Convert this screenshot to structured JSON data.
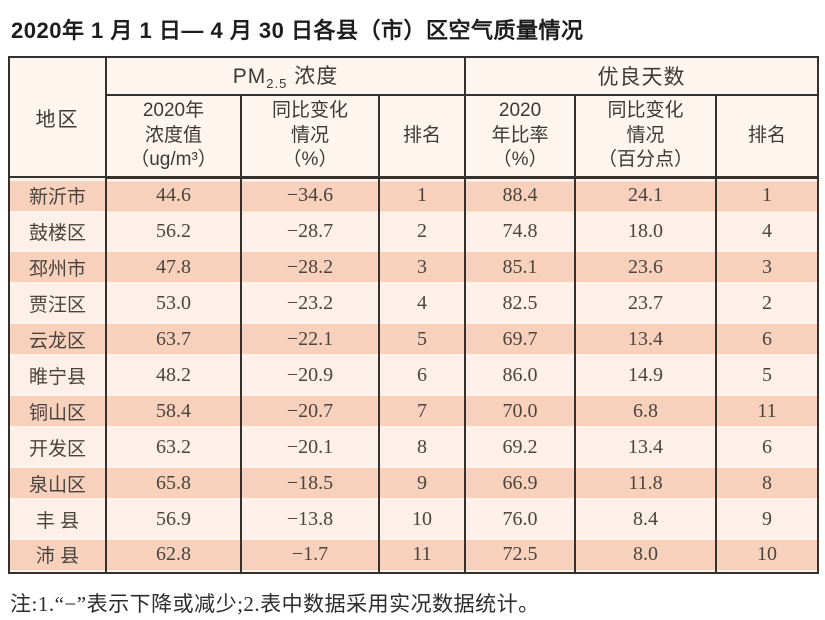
{
  "title": "2020年 1 月 1 日— 4 月 30 日各县（市）区空气质量情况",
  "note": "注:1.“−”表示下降或减少;2.表中数据采用实况数据统计。",
  "table": {
    "region_header": "地区",
    "pm_group": {
      "prefix": "PM",
      "sub": "2.5",
      "suffix": " 浓度"
    },
    "days_group_label": "优良天数",
    "sub_headers": [
      "2020年\n浓度值\n（ug/m³）",
      "同比变化\n情况\n（%）",
      "排名",
      "2020\n年比率\n（%）",
      "同比变化\n情况\n（百分点）",
      "排名"
    ],
    "rows": [
      {
        "region": "新沂市",
        "pm_value": "44.6",
        "pm_change": "−34.6",
        "pm_rank": "1",
        "days_ratio": "88.4",
        "days_change": "24.1",
        "days_rank": "1"
      },
      {
        "region": "鼓楼区",
        "pm_value": "56.2",
        "pm_change": "−28.7",
        "pm_rank": "2",
        "days_ratio": "74.8",
        "days_change": "18.0",
        "days_rank": "4"
      },
      {
        "region": "邳州市",
        "pm_value": "47.8",
        "pm_change": "−28.2",
        "pm_rank": "3",
        "days_ratio": "85.1",
        "days_change": "23.6",
        "days_rank": "3"
      },
      {
        "region": "贾汪区",
        "pm_value": "53.0",
        "pm_change": "−23.2",
        "pm_rank": "4",
        "days_ratio": "82.5",
        "days_change": "23.7",
        "days_rank": "2"
      },
      {
        "region": "云龙区",
        "pm_value": "63.7",
        "pm_change": "−22.1",
        "pm_rank": "5",
        "days_ratio": "69.7",
        "days_change": "13.4",
        "days_rank": "6"
      },
      {
        "region": "睢宁县",
        "pm_value": "48.2",
        "pm_change": "−20.9",
        "pm_rank": "6",
        "days_ratio": "86.0",
        "days_change": "14.9",
        "days_rank": "5"
      },
      {
        "region": "铜山区",
        "pm_value": "58.4",
        "pm_change": "−20.7",
        "pm_rank": "7",
        "days_ratio": "70.0",
        "days_change": "6.8",
        "days_rank": "11"
      },
      {
        "region": "开发区",
        "pm_value": "63.2",
        "pm_change": "−20.1",
        "pm_rank": "8",
        "days_ratio": "69.2",
        "days_change": "13.4",
        "days_rank": "6"
      },
      {
        "region": "泉山区",
        "pm_value": "65.8",
        "pm_change": "−18.5",
        "pm_rank": "9",
        "days_ratio": "66.9",
        "days_change": "11.8",
        "days_rank": "8"
      },
      {
        "region": "丰 县",
        "pm_value": "56.9",
        "pm_change": "−13.8",
        "pm_rank": "10",
        "days_ratio": "76.0",
        "days_change": "8.4",
        "days_rank": "9"
      },
      {
        "region": "沛 县",
        "pm_value": "62.8",
        "pm_change": "−1.7",
        "pm_rank": "11",
        "days_ratio": "72.5",
        "days_change": "8.0",
        "days_rank": "10"
      }
    ]
  },
  "colors": {
    "border": "#36312c",
    "header_bg": "#fdf5ee",
    "row_salmon": "#f8d1bd",
    "row_light": "#fcf0e8",
    "title_text": "#1d1d1d",
    "cell_text": "#4c443e"
  }
}
